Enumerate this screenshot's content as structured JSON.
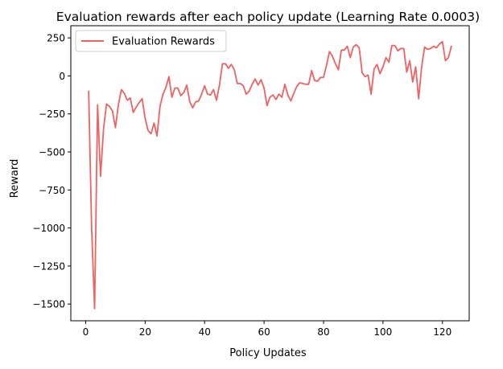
{
  "chart_data": {
    "type": "line",
    "title": "Evaluation rewards after each policy update (Learning Rate 0.0003)",
    "xlabel": "Policy Updates",
    "ylabel": "Reward",
    "xlim": [
      -5,
      129
    ],
    "ylim": [
      -1610,
      330
    ],
    "xticks": [
      0,
      20,
      40,
      60,
      80,
      100,
      120
    ],
    "yticks": [
      250,
      0,
      -250,
      -500,
      -750,
      -1000,
      -1250,
      -1500
    ],
    "ytick_labels": [
      "250",
      "0",
      "−250",
      "−500",
      "−750",
      "−1000",
      "−1250",
      "−1500"
    ],
    "grid": false,
    "legend_position": "upper-left",
    "series": [
      {
        "name": "Evaluation Rewards",
        "color": "#f16161",
        "x": [
          1,
          2,
          3,
          4,
          5,
          6,
          7,
          8,
          9,
          10,
          11,
          12,
          13,
          14,
          15,
          16,
          17,
          18,
          19,
          20,
          21,
          22,
          23,
          24,
          25,
          26,
          27,
          28,
          29,
          30,
          31,
          32,
          33,
          34,
          35,
          36,
          37,
          38,
          39,
          40,
          41,
          42,
          43,
          44,
          45,
          46,
          47,
          48,
          49,
          50,
          51,
          52,
          53,
          54,
          55,
          56,
          57,
          58,
          59,
          60,
          61,
          62,
          63,
          64,
          65,
          66,
          67,
          68,
          69,
          70,
          71,
          72,
          73,
          74,
          75,
          76,
          77,
          78,
          79,
          80,
          81,
          82,
          83,
          84,
          85,
          86,
          87,
          88,
          89,
          90,
          91,
          92,
          93,
          94,
          95,
          96,
          97,
          98,
          99,
          100,
          101,
          102,
          103,
          104,
          105,
          106,
          107,
          108,
          109,
          110,
          111,
          112,
          113,
          114,
          115,
          116,
          117,
          118,
          119,
          120,
          121,
          122,
          123
        ],
        "values": [
          -100,
          -1000,
          -1530,
          -190,
          -660,
          -350,
          -185,
          -200,
          -230,
          -340,
          -190,
          -90,
          -115,
          -160,
          -145,
          -240,
          -205,
          -175,
          -150,
          -280,
          -360,
          -380,
          -310,
          -395,
          -200,
          -120,
          -75,
          -5,
          -140,
          -80,
          -80,
          -130,
          -110,
          -60,
          -170,
          -210,
          -170,
          -165,
          -120,
          -65,
          -120,
          -125,
          -90,
          -160,
          -60,
          80,
          80,
          50,
          75,
          40,
          -50,
          -50,
          -65,
          -120,
          -100,
          -55,
          -20,
          -60,
          -25,
          -80,
          -195,
          -140,
          -125,
          -155,
          -120,
          -140,
          -55,
          -125,
          -165,
          -115,
          -70,
          -45,
          -50,
          -55,
          -55,
          35,
          -30,
          -35,
          -10,
          -10,
          70,
          160,
          130,
          80,
          40,
          170,
          170,
          195,
          120,
          190,
          205,
          185,
          20,
          -5,
          5,
          -120,
          45,
          75,
          15,
          60,
          120,
          90,
          200,
          200,
          165,
          180,
          180,
          25,
          100,
          -40,
          60,
          -150,
          60,
          190,
          175,
          180,
          195,
          185,
          210,
          225,
          100,
          120,
          195
        ]
      }
    ]
  }
}
